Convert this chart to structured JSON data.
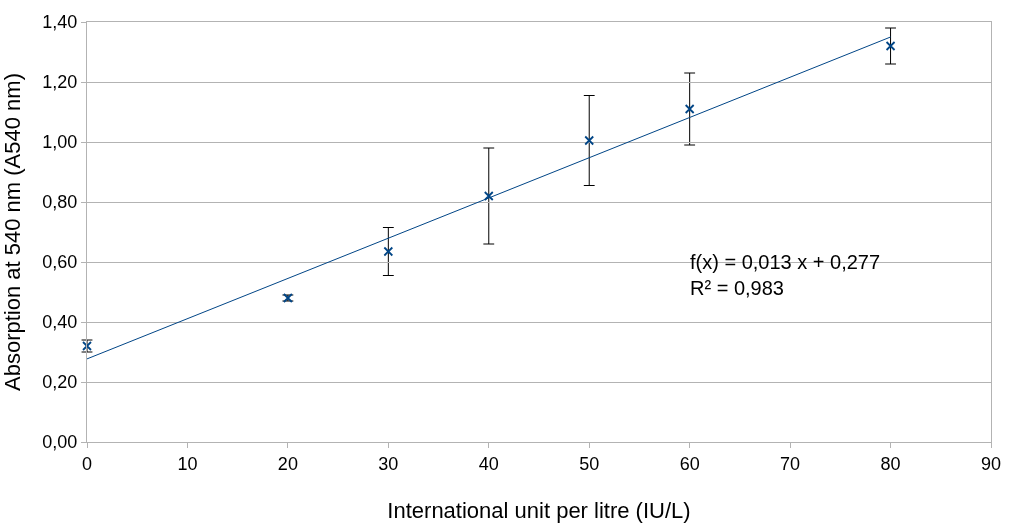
{
  "chart_data": {
    "type": "scatter",
    "xlabel": "International unit per litre (IU/L)",
    "ylabel": "Absorption at 540 nm (A540 nm)",
    "marker": "cross",
    "grid": "y",
    "xlim": [
      0,
      90
    ],
    "xticks": [
      0,
      10,
      20,
      30,
      40,
      50,
      60,
      70,
      80,
      90
    ],
    "ylim": [
      0,
      1.4
    ],
    "yticks": [
      {
        "value": 0,
        "label": "0,00"
      },
      {
        "value": 0.2,
        "label": "0,20"
      },
      {
        "value": 0.4,
        "label": "0,40"
      },
      {
        "value": 0.6,
        "label": "0,60"
      },
      {
        "value": 0.8,
        "label": "0,80"
      },
      {
        "value": 1.0,
        "label": "1,00"
      },
      {
        "value": 1.2,
        "label": "1,20"
      },
      {
        "value": 1.4,
        "label": "1,40"
      }
    ],
    "series": [
      {
        "color": "#004586",
        "x": [
          0,
          20,
          30,
          40,
          50,
          60,
          80
        ],
        "values": [
          0.32,
          0.48,
          0.635,
          0.82,
          1.005,
          1.11,
          1.32
        ],
        "errors": [
          0.02,
          0.01,
          0.08,
          0.16,
          0.15,
          0.12,
          0.06
        ]
      },
      {
        "type": "line",
        "marker": "none",
        "color": "#004586",
        "x": [
          0,
          80
        ],
        "values": [
          0.277,
          1.35
        ]
      }
    ],
    "annotations": [
      "f(x) = 0,013 x + 0,277\nR² = 0,983"
    ]
  }
}
